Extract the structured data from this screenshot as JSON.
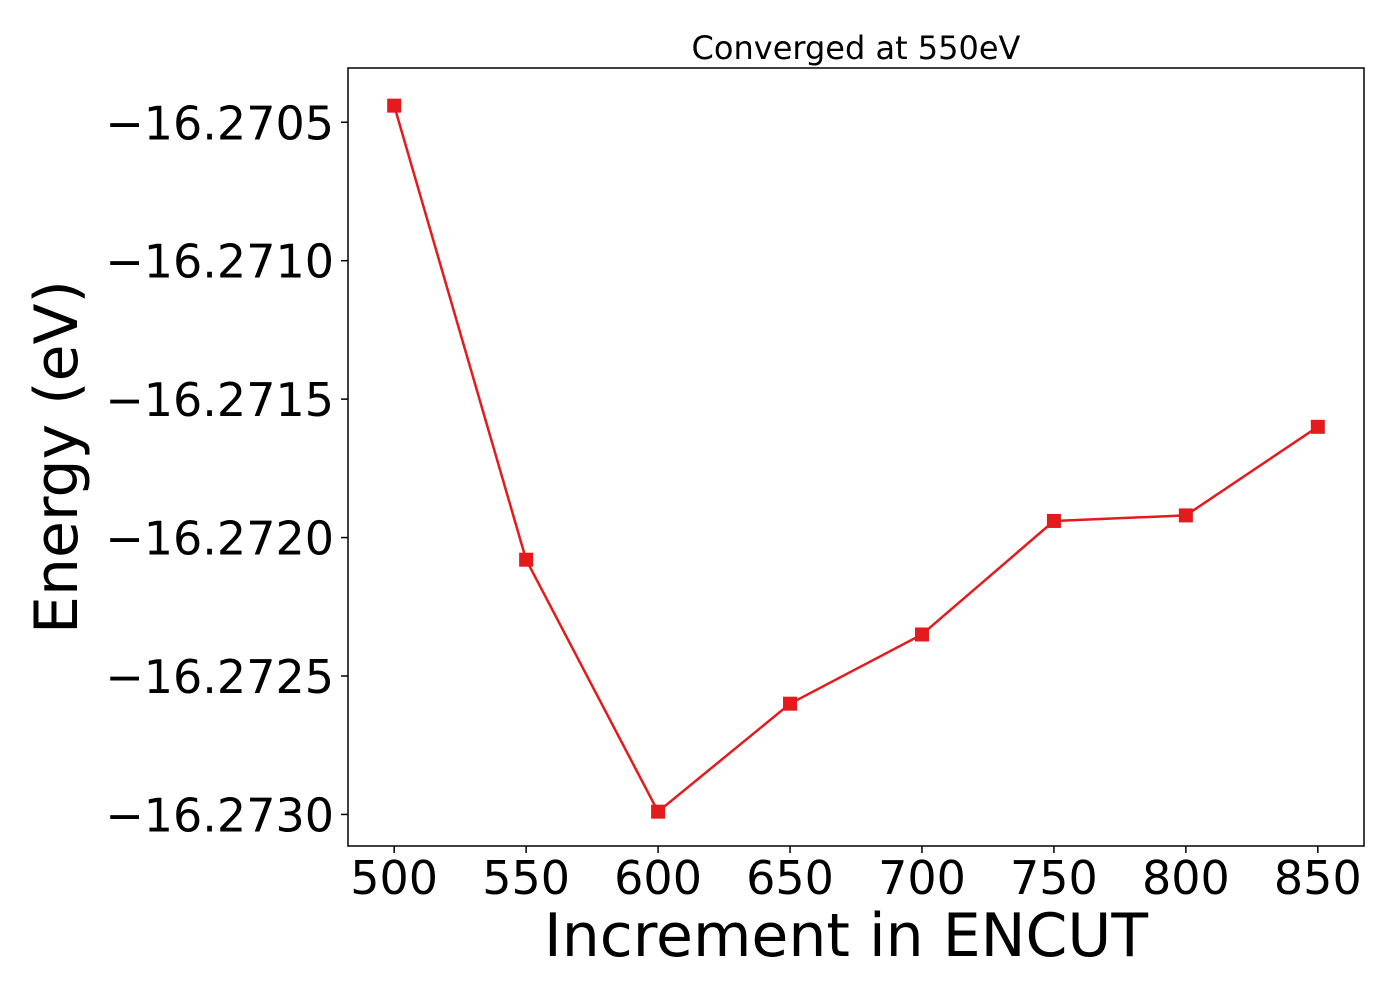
{
  "chart_data": {
    "type": "line",
    "title": "Converged at 550eV",
    "xlabel": "Increment in ENCUT",
    "ylabel": "Energy (eV)",
    "x": [
      500,
      550,
      600,
      650,
      700,
      750,
      800,
      850
    ],
    "series": [
      {
        "values": [
          -16.27044,
          -16.27208,
          -16.27299,
          -16.2726,
          -16.27235,
          -16.27194,
          -16.27192,
          -16.2716
        ],
        "color": "#e41a1c",
        "marker": "square"
      }
    ],
    "x_ticks": [
      500,
      550,
      600,
      650,
      700,
      750,
      800,
      850
    ],
    "x_tick_labels": [
      "500",
      "550",
      "600",
      "650",
      "700",
      "750",
      "800",
      "850"
    ],
    "y_ticks": [
      -16.2705,
      -16.271,
      -16.2715,
      -16.272,
      -16.2725,
      -16.273
    ],
    "y_tick_labels": [
      "−16.2705",
      "−16.2710",
      "−16.2715",
      "−16.2720",
      "−16.2725",
      "−16.2730"
    ],
    "xlim": [
      482.5,
      867.5
    ],
    "ylim": [
      -16.273114,
      -16.270304
    ],
    "grid": false,
    "legend": "none"
  }
}
